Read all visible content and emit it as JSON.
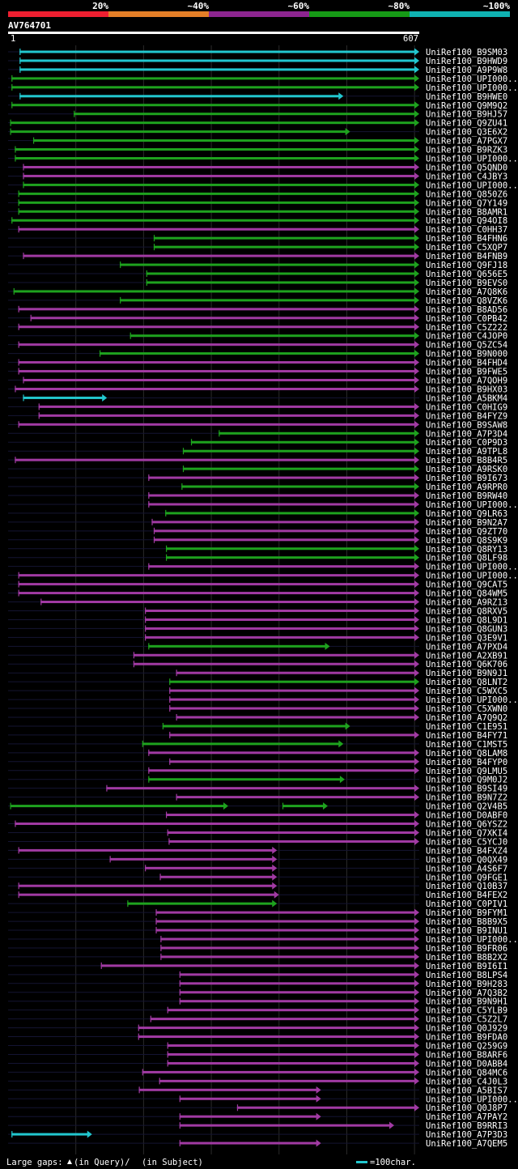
{
  "chart_data": {
    "type": "bar",
    "title": "AV764701",
    "query_start": "1",
    "query_end": "607",
    "query_length": 607,
    "identity_scale": [
      {
        "label": "20%",
        "color": "#ee1f30"
      },
      {
        "label": "~40%",
        "color": "#e47f27"
      },
      {
        "label": "~60%",
        "color": "#8d2590"
      },
      {
        "label": "~80%",
        "color": "#169a16"
      },
      {
        "label": "~100%",
        "color": "#0fb2b2"
      }
    ],
    "series_colors": {
      "cyan": "#22c7cf",
      "green": "#1ea21e",
      "magenta": "#a13aa3"
    },
    "legend": {
      "gaps_label": "Large gaps:",
      "query_gap_text": "(in Query)/",
      "subject_gap_text": "(in Subject)",
      "scale_text": "=100char."
    },
    "hits": [
      {
        "label": "UniRef100_B9SM03",
        "start": 17,
        "end": 607,
        "color": "cyan"
      },
      {
        "label": "UniRef100_B9HWD9",
        "start": 17,
        "end": 607,
        "color": "cyan"
      },
      {
        "label": "UniRef100_A9P9W8",
        "start": 17,
        "end": 607,
        "color": "cyan"
      },
      {
        "label": "UniRef100_UPI000..",
        "start": 5,
        "end": 607,
        "color": "green"
      },
      {
        "label": "UniRef100_UPI000..",
        "start": 5,
        "end": 607,
        "color": "green"
      },
      {
        "label": "UniRef100_B9HWE0",
        "start": 17,
        "end": 495,
        "color": "cyan"
      },
      {
        "label": "UniRef100_Q9M9Q2",
        "start": 5,
        "end": 607,
        "color": "green"
      },
      {
        "label": "UniRef100_B9HJ57",
        "start": 97,
        "end": 607,
        "color": "green"
      },
      {
        "label": "UniRef100_Q9ZU41",
        "start": 3,
        "end": 607,
        "color": "green"
      },
      {
        "label": "UniRef100_Q3E6X2",
        "start": 3,
        "end": 505,
        "color": "green"
      },
      {
        "label": "UniRef100_A7PGX7",
        "start": 37,
        "end": 607,
        "color": "green"
      },
      {
        "label": "UniRef100_B9RZK3",
        "start": 10,
        "end": 607,
        "color": "green"
      },
      {
        "label": "UniRef100_UPI000..",
        "start": 10,
        "end": 607,
        "color": "green"
      },
      {
        "label": "UniRef100_Q5QND0",
        "start": 22,
        "end": 607,
        "color": "magenta"
      },
      {
        "label": "UniRef100_C4JBY3",
        "start": 22,
        "end": 607,
        "color": "magenta"
      },
      {
        "label": "UniRef100_UPI000..",
        "start": 22,
        "end": 607,
        "color": "green"
      },
      {
        "label": "UniRef100_Q850Z6",
        "start": 15,
        "end": 607,
        "color": "green"
      },
      {
        "label": "UniRef100_Q7Y149",
        "start": 15,
        "end": 607,
        "color": "green"
      },
      {
        "label": "UniRef100_B8AMR1",
        "start": 15,
        "end": 607,
        "color": "green"
      },
      {
        "label": "UniRef100_Q94OI8",
        "start": 5,
        "end": 607,
        "color": "green"
      },
      {
        "label": "UniRef100_C0HH37",
        "start": 15,
        "end": 607,
        "color": "magenta"
      },
      {
        "label": "UniRef100_B4FHN6",
        "start": 215,
        "end": 607,
        "color": "green"
      },
      {
        "label": "UniRef100_C5XQP7",
        "start": 215,
        "end": 607,
        "color": "green"
      },
      {
        "label": "UniRef100_B4FNB9",
        "start": 22,
        "end": 607,
        "color": "magenta"
      },
      {
        "label": "UniRef100_Q9FJ18",
        "start": 165,
        "end": 607,
        "color": "green"
      },
      {
        "label": "UniRef100_Q656E5",
        "start": 204,
        "end": 607,
        "color": "green"
      },
      {
        "label": "UniRef100_B9EVS0",
        "start": 204,
        "end": 607,
        "color": "green"
      },
      {
        "label": "UniRef100_A7Q8K6",
        "start": 8,
        "end": 607,
        "color": "green"
      },
      {
        "label": "UniRef100_Q8VZK6",
        "start": 165,
        "end": 607,
        "color": "green"
      },
      {
        "label": "UniRef100_B8AD56",
        "start": 15,
        "end": 607,
        "color": "magenta"
      },
      {
        "label": "UniRef100_C0PB42",
        "start": 33,
        "end": 607,
        "color": "magenta"
      },
      {
        "label": "UniRef100_C5Z222",
        "start": 15,
        "end": 607,
        "color": "magenta"
      },
      {
        "label": "UniRef100_C4JOP0",
        "start": 180,
        "end": 607,
        "color": "green"
      },
      {
        "label": "UniRef100_Q5ZC54",
        "start": 15,
        "end": 607,
        "color": "magenta"
      },
      {
        "label": "UniRef100_B9N000",
        "start": 135,
        "end": 607,
        "color": "green"
      },
      {
        "label": "UniRef100_B4FHD4",
        "start": 15,
        "end": 607,
        "color": "magenta"
      },
      {
        "label": "UniRef100_B9FWE5",
        "start": 15,
        "end": 607,
        "color": "magenta"
      },
      {
        "label": "UniRef100_A7QOH9",
        "start": 22,
        "end": 607,
        "color": "magenta"
      },
      {
        "label": "UniRef100_B9HX03",
        "start": 10,
        "end": 607,
        "color": "magenta"
      },
      {
        "label": "UniRef100_A5BKM4",
        "start": 22,
        "end": 146,
        "color": "cyan"
      },
      {
        "label": "UniRef100_C0HIG9",
        "start": 45,
        "end": 607,
        "color": "magenta"
      },
      {
        "label": "UniRef100_B4FYZ9",
        "start": 45,
        "end": 607,
        "color": "magenta"
      },
      {
        "label": "UniRef100_B9SAW8",
        "start": 15,
        "end": 607,
        "color": "magenta"
      },
      {
        "label": "UniRef100_A7P3D4",
        "start": 311,
        "end": 607,
        "color": "green"
      },
      {
        "label": "UniRef100_C0P9D3",
        "start": 270,
        "end": 607,
        "color": "green"
      },
      {
        "label": "UniRef100_A9TPL8",
        "start": 258,
        "end": 607,
        "color": "green"
      },
      {
        "label": "UniRef100_B8B4R5",
        "start": 10,
        "end": 607,
        "color": "magenta"
      },
      {
        "label": "UniRef100_A9RSK0",
        "start": 258,
        "end": 607,
        "color": "green"
      },
      {
        "label": "UniRef100_B9I673",
        "start": 207,
        "end": 607,
        "color": "magenta"
      },
      {
        "label": "UniRef100_A9RPR0",
        "start": 256,
        "end": 607,
        "color": "green"
      },
      {
        "label": "UniRef100_B9RW40",
        "start": 207,
        "end": 607,
        "color": "magenta"
      },
      {
        "label": "UniRef100_UPI000..",
        "start": 207,
        "end": 607,
        "color": "magenta"
      },
      {
        "label": "UniRef100_Q9LR63",
        "start": 232,
        "end": 607,
        "color": "green"
      },
      {
        "label": "UniRef100_B9N2A7",
        "start": 212,
        "end": 607,
        "color": "magenta"
      },
      {
        "label": "UniRef100_Q9ZT70",
        "start": 215,
        "end": 607,
        "color": "magenta"
      },
      {
        "label": "UniRef100_Q8S9K9",
        "start": 215,
        "end": 607,
        "color": "magenta"
      },
      {
        "label": "UniRef100_Q8RY13",
        "start": 233,
        "end": 607,
        "color": "green"
      },
      {
        "label": "UniRef100_Q8LF98",
        "start": 233,
        "end": 607,
        "color": "green"
      },
      {
        "label": "UniRef100_UPI000..",
        "start": 207,
        "end": 607,
        "color": "magenta"
      },
      {
        "label": "UniRef100_UPI000..",
        "start": 15,
        "end": 607,
        "color": "magenta"
      },
      {
        "label": "UniRef100_Q9CAT5",
        "start": 15,
        "end": 607,
        "color": "magenta"
      },
      {
        "label": "UniRef100_Q84WM5",
        "start": 15,
        "end": 607,
        "color": "magenta"
      },
      {
        "label": "UniRef100_A9RZ13",
        "start": 48,
        "end": 607,
        "color": "magenta"
      },
      {
        "label": "UniRef100_Q8RXV5",
        "start": 202,
        "end": 607,
        "color": "magenta"
      },
      {
        "label": "UniRef100_Q8L9D1",
        "start": 202,
        "end": 607,
        "color": "magenta"
      },
      {
        "label": "UniRef100_Q8GUN3",
        "start": 202,
        "end": 607,
        "color": "magenta"
      },
      {
        "label": "UniRef100_Q3E9V1",
        "start": 202,
        "end": 607,
        "color": "magenta"
      },
      {
        "label": "UniRef100_A7PXD4",
        "start": 207,
        "end": 475,
        "color": "green"
      },
      {
        "label": "UniRef100_A2XB91",
        "start": 185,
        "end": 607,
        "color": "magenta"
      },
      {
        "label": "UniRef100_Q6K706",
        "start": 185,
        "end": 607,
        "color": "magenta"
      },
      {
        "label": "UniRef100_B9N9J1",
        "start": 248,
        "end": 607,
        "color": "magenta"
      },
      {
        "label": "UniRef100_Q8LNT2",
        "start": 238,
        "end": 607,
        "color": "green"
      },
      {
        "label": "UniRef100_C5WXC5",
        "start": 238,
        "end": 607,
        "color": "magenta"
      },
      {
        "label": "UniRef100_UPI000..",
        "start": 238,
        "end": 607,
        "color": "magenta"
      },
      {
        "label": "UniRef100_C5XWN0",
        "start": 238,
        "end": 607,
        "color": "magenta"
      },
      {
        "label": "UniRef100_A7Q9Q2",
        "start": 248,
        "end": 607,
        "color": "magenta"
      },
      {
        "label": "UniRef100_C1E951",
        "start": 228,
        "end": 505,
        "color": "green"
      },
      {
        "label": "UniRef100_B4FY71",
        "start": 238,
        "end": 607,
        "color": "magenta"
      },
      {
        "label": "UniRef100_C1MST5",
        "start": 198,
        "end": 495,
        "color": "green"
      },
      {
        "label": "UniRef100_Q8LAM8",
        "start": 207,
        "end": 607,
        "color": "magenta"
      },
      {
        "label": "UniRef100_B4FYP0",
        "start": 238,
        "end": 607,
        "color": "magenta"
      },
      {
        "label": "UniRef100_Q9LMU5",
        "start": 207,
        "end": 607,
        "color": "magenta"
      },
      {
        "label": "UniRef100_Q9M0J2",
        "start": 207,
        "end": 497,
        "color": "green"
      },
      {
        "label": "UniRef100_B9SI49",
        "start": 145,
        "end": 607,
        "color": "magenta"
      },
      {
        "label": "UniRef100_B9N7Z2",
        "start": 248,
        "end": 607,
        "color": "magenta"
      },
      {
        "label": "UniRef100_Q2V4B5",
        "start": 3,
        "end": 325,
        "color": "green",
        "start2": 405,
        "end2": 472
      },
      {
        "label": "UniRef100_D0ABF0",
        "start": 233,
        "end": 607,
        "color": "magenta"
      },
      {
        "label": "UniRef100_Q6YSZ2",
        "start": 10,
        "end": 607,
        "color": "magenta"
      },
      {
        "label": "UniRef100_Q7XKI4",
        "start": 235,
        "end": 607,
        "color": "magenta"
      },
      {
        "label": "UniRef100_C5YCJ0",
        "start": 237,
        "end": 607,
        "color": "magenta"
      },
      {
        "label": "UniRef100_B4FXZ4",
        "start": 15,
        "end": 397,
        "color": "magenta"
      },
      {
        "label": "UniRef100_Q0QX49",
        "start": 150,
        "end": 397,
        "color": "magenta"
      },
      {
        "label": "UniRef100_A4S6F7",
        "start": 202,
        "end": 397,
        "color": "magenta"
      },
      {
        "label": "UniRef100_Q9FGE1",
        "start": 224,
        "end": 397,
        "color": "magenta"
      },
      {
        "label": "UniRef100_Q10B37",
        "start": 15,
        "end": 397,
        "color": "magenta"
      },
      {
        "label": "UniRef100_B4FEX2",
        "start": 15,
        "end": 400,
        "color": "magenta"
      },
      {
        "label": "UniRef100_C0PIV1",
        "start": 176,
        "end": 397,
        "color": "green"
      },
      {
        "label": "UniRef100_B9FYM1",
        "start": 218,
        "end": 607,
        "color": "magenta"
      },
      {
        "label": "UniRef100_B8B9X5",
        "start": 218,
        "end": 607,
        "color": "magenta"
      },
      {
        "label": "UniRef100_B9INU1",
        "start": 218,
        "end": 607,
        "color": "magenta"
      },
      {
        "label": "UniRef100_UPI000..",
        "start": 225,
        "end": 607,
        "color": "magenta"
      },
      {
        "label": "UniRef100_B9FR06",
        "start": 225,
        "end": 607,
        "color": "magenta"
      },
      {
        "label": "UniRef100_B8B2X2",
        "start": 225,
        "end": 607,
        "color": "magenta"
      },
      {
        "label": "UniRef100_B9I6I1",
        "start": 137,
        "end": 607,
        "color": "magenta"
      },
      {
        "label": "UniRef100_B8LPS4",
        "start": 253,
        "end": 607,
        "color": "magenta"
      },
      {
        "label": "UniRef100_B9H283",
        "start": 253,
        "end": 607,
        "color": "magenta"
      },
      {
        "label": "UniRef100_A7Q3B2",
        "start": 253,
        "end": 607,
        "color": "magenta"
      },
      {
        "label": "UniRef100_B9N9H1",
        "start": 253,
        "end": 607,
        "color": "magenta"
      },
      {
        "label": "UniRef100_C5YLB9",
        "start": 235,
        "end": 607,
        "color": "magenta"
      },
      {
        "label": "UniRef100_C5Z2L7",
        "start": 210,
        "end": 607,
        "color": "magenta"
      },
      {
        "label": "UniRef100_Q0J929",
        "start": 192,
        "end": 607,
        "color": "magenta"
      },
      {
        "label": "UniRef100_B9FDA0",
        "start": 192,
        "end": 607,
        "color": "magenta"
      },
      {
        "label": "UniRef100_Q259G9",
        "start": 235,
        "end": 607,
        "color": "magenta"
      },
      {
        "label": "UniRef100_B8ARF6",
        "start": 235,
        "end": 607,
        "color": "magenta"
      },
      {
        "label": "UniRef100_D0ABB4",
        "start": 235,
        "end": 607,
        "color": "magenta"
      },
      {
        "label": "UniRef100_Q84MC6",
        "start": 198,
        "end": 607,
        "color": "magenta"
      },
      {
        "label": "UniRef100_C4J0L3",
        "start": 223,
        "end": 607,
        "color": "magenta"
      },
      {
        "label": "UniRef100_A5BIS7",
        "start": 193,
        "end": 462,
        "color": "magenta"
      },
      {
        "label": "UniRef100_UPI000..",
        "start": 253,
        "end": 462,
        "color": "magenta"
      },
      {
        "label": "UniRef100_Q0J8P7",
        "start": 338,
        "end": 607,
        "color": "magenta"
      },
      {
        "label": "UniRef100_A7PAY2",
        "start": 253,
        "end": 462,
        "color": "magenta"
      },
      {
        "label": "UniRef100_B9RRI3",
        "start": 253,
        "end": 570,
        "color": "magenta"
      },
      {
        "label": "UniRef100_A7P3D3",
        "start": 5,
        "end": 124,
        "color": "cyan"
      },
      {
        "label": "UniRef100_A7QEM5",
        "start": 253,
        "end": 462,
        "color": "magenta"
      }
    ]
  }
}
